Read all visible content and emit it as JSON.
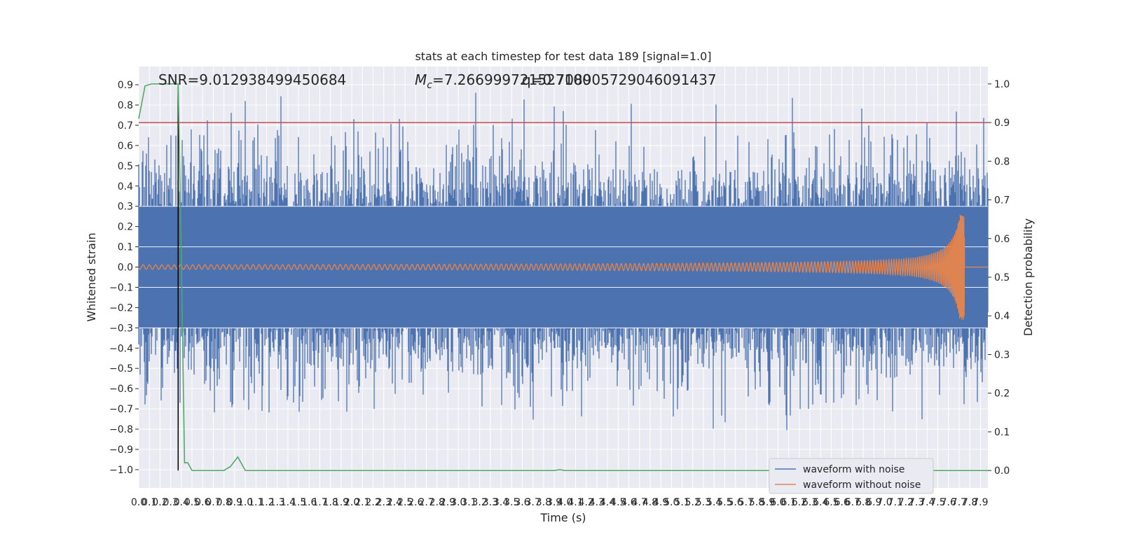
{
  "chart_data": {
    "type": "line",
    "title": "stats at each timestep for test data 189 [signal=1.0]",
    "xlabel": "Time (s)",
    "ylabel_left": "Whitened strain",
    "ylabel_right": "Detection probability",
    "xlim": [
      0.0,
      7.97
    ],
    "ylim_left": [
      -1.09,
      0.99
    ],
    "ylim_right": [
      -0.045,
      1.045
    ],
    "x_ticks": [
      "0.0",
      "0.1",
      "0.2",
      "0.3",
      "0.4",
      "0.5",
      "0.6",
      "0.7",
      "0.8",
      "0.9",
      "1.0",
      "1.1",
      "1.2",
      "1.3",
      "1.4",
      "1.5",
      "1.6",
      "1.7",
      "1.8",
      "1.9",
      "2.0",
      "2.1",
      "2.2",
      "2.3",
      "2.4",
      "2.5",
      "2.6",
      "2.7",
      "2.8",
      "2.9",
      "3.0",
      "3.1",
      "3.2",
      "3.3",
      "3.4",
      "3.5",
      "3.6",
      "3.7",
      "3.8",
      "3.9",
      "4.0",
      "4.1",
      "4.2",
      "4.3",
      "4.4",
      "4.5",
      "4.6",
      "4.7",
      "4.8",
      "4.9",
      "5.0",
      "5.1",
      "5.2",
      "5.3",
      "5.4",
      "5.5",
      "5.6",
      "5.7",
      "5.8",
      "5.9",
      "6.0",
      "6.1",
      "6.2",
      "6.3",
      "6.4",
      "6.5",
      "6.6",
      "6.7",
      "6.8",
      "6.9",
      "7.0",
      "7.1",
      "7.2",
      "7.3",
      "7.4",
      "7.5",
      "7.6",
      "7.7",
      "7.8",
      "7.9"
    ],
    "y_ticks_left": [
      "0.9",
      "0.8",
      "0.7",
      "0.6",
      "0.5",
      "0.4",
      "0.3",
      "0.2",
      "0.1",
      "0.0",
      "−0.1",
      "−0.2",
      "−0.3",
      "−0.4",
      "−0.5",
      "−0.6",
      "−0.7",
      "−0.8",
      "−0.9",
      "−1.0"
    ],
    "y_ticks_right": [
      "1.0",
      "0.9",
      "0.8",
      "0.7",
      "0.6",
      "0.5",
      "0.4",
      "0.3",
      "0.2",
      "0.1",
      "0.0"
    ],
    "annotations": {
      "snr": "SNR=9.012938499450684",
      "mc": "=7.266999721527100",
      "mc_symbol": "M",
      "mc_sub": "c",
      "q": "q=0.708905729046091437"
    },
    "threshold_probability": 0.9,
    "event_time": 0.37,
    "series": [
      {
        "name": "waveform with noise",
        "color": "#4c72b0",
        "description": "whitened strain with noise, amplitude roughly ±0.35 with spikes up to ±0.9",
        "approx_envelope": [
          0.35,
          -0.35
        ]
      },
      {
        "name": "waveform without noise",
        "color": "#dd8452",
        "description": "chirp signal growing from ±0.015 to ±0.26 by t≈7.75 s, then zero",
        "approx_peak_time": 7.75,
        "approx_peak_amplitude": 0.26
      },
      {
        "name": "detection probability",
        "color": "#55a868",
        "x": [
          0.0,
          0.06,
          0.12,
          0.2,
          0.3,
          0.37,
          0.4,
          0.43,
          0.46,
          0.5,
          0.57,
          0.7,
          0.8,
          0.86,
          0.93,
          1.0,
          3.9,
          3.95,
          4.0,
          7.97
        ],
        "y": [
          0.91,
          0.995,
          1.0,
          1.0,
          1.0,
          1.0,
          0.55,
          0.02,
          0.02,
          0.0,
          0.0,
          0.0,
          0.0,
          0.01,
          0.035,
          0.0,
          0.0,
          0.002,
          0.0,
          0.0
        ]
      }
    ],
    "threshold_color": "#c44e52",
    "legend": [
      {
        "label": "waveform with noise",
        "color": "#4c72b0"
      },
      {
        "label": "waveform without noise",
        "color": "#dd8452"
      }
    ],
    "legend_position": "bottom-right"
  }
}
